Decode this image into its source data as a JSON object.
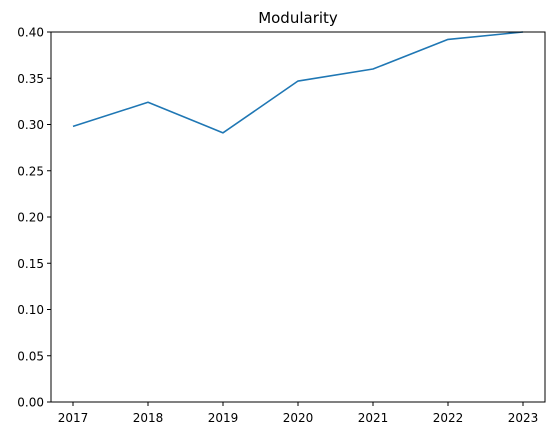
{
  "chart_data": {
    "type": "line",
    "title": "Modularity",
    "xlabel": "",
    "ylabel": "",
    "x": [
      "2017",
      "2018",
      "2019",
      "2020",
      "2021",
      "2022",
      "2023"
    ],
    "series": [
      {
        "name": "",
        "values": [
          0.298,
          0.324,
          0.291,
          0.347,
          0.36,
          0.392,
          0.4
        ],
        "color": "#1f77b4"
      }
    ],
    "ylim": [
      0.0,
      0.4
    ],
    "yticks": [
      "0.00",
      "0.05",
      "0.10",
      "0.15",
      "0.20",
      "0.25",
      "0.30",
      "0.35",
      "0.40"
    ],
    "grid": false,
    "legend": "none"
  }
}
